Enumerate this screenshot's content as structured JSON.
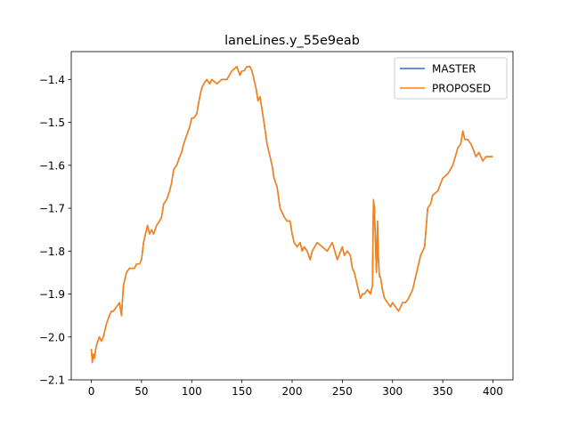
{
  "chart_data": {
    "type": "line",
    "title": "laneLines.y_55e9eab",
    "xlabel": "",
    "ylabel": "",
    "xlim": [
      -20,
      420
    ],
    "ylim": [
      -2.1,
      -1.335
    ],
    "xticks": [
      0,
      50,
      100,
      150,
      200,
      250,
      300,
      350,
      400
    ],
    "yticks": [
      -2.1,
      -2.0,
      -1.9,
      -1.8,
      -1.7,
      -1.6,
      -1.5,
      -1.4
    ],
    "xtick_labels": [
      "0",
      "50",
      "100",
      "150",
      "200",
      "250",
      "300",
      "350",
      "400"
    ],
    "ytick_labels": [
      "−2.1",
      "−2.0",
      "−1.9",
      "−1.8",
      "−1.7",
      "−1.6",
      "−1.5",
      "−1.4"
    ],
    "grid": false,
    "legend_position": "top-right",
    "series": [
      {
        "name": "MASTER",
        "color": "#1f77b4",
        "x": [
          0,
          1,
          2,
          3,
          5,
          8,
          10,
          12,
          15,
          18,
          20,
          22,
          25,
          28,
          30,
          32,
          35,
          38,
          40,
          43,
          45,
          48,
          50,
          52,
          54,
          56,
          58,
          60,
          62,
          65,
          68,
          70,
          72,
          75,
          78,
          80,
          82,
          85,
          88,
          90,
          92,
          95,
          98,
          100,
          102,
          105,
          108,
          110,
          112,
          115,
          118,
          120,
          125,
          130,
          135,
          140,
          145,
          148,
          150,
          152,
          155,
          158,
          160,
          162,
          164,
          166,
          168,
          170,
          172,
          175,
          178,
          180,
          182,
          185,
          188,
          190,
          192,
          195,
          198,
          200,
          202,
          205,
          208,
          210,
          212,
          215,
          218,
          220,
          225,
          230,
          235,
          240,
          245,
          250,
          252,
          255,
          258,
          260,
          262,
          265,
          268,
          270,
          272,
          275,
          278,
          280,
          281,
          282,
          283,
          284,
          285,
          286,
          287,
          288,
          290,
          292,
          295,
          298,
          300,
          303,
          306,
          310,
          313,
          316,
          320,
          322,
          325,
          328,
          330,
          332,
          335,
          338,
          340,
          345,
          350,
          355,
          360,
          365,
          368,
          370,
          372,
          375,
          378,
          380,
          383,
          386,
          390,
          393,
          396,
          399
        ],
        "y": [
          -2.03,
          -2.06,
          -2.04,
          -2.05,
          -2.02,
          -2.0,
          -2.01,
          -2.0,
          -1.97,
          -1.95,
          -1.94,
          -1.94,
          -1.93,
          -1.92,
          -1.95,
          -1.88,
          -1.85,
          -1.84,
          -1.84,
          -1.84,
          -1.83,
          -1.83,
          -1.82,
          -1.78,
          -1.76,
          -1.74,
          -1.76,
          -1.75,
          -1.76,
          -1.74,
          -1.73,
          -1.72,
          -1.69,
          -1.68,
          -1.66,
          -1.64,
          -1.61,
          -1.6,
          -1.58,
          -1.57,
          -1.55,
          -1.53,
          -1.51,
          -1.49,
          -1.49,
          -1.48,
          -1.44,
          -1.42,
          -1.41,
          -1.4,
          -1.41,
          -1.4,
          -1.41,
          -1.4,
          -1.4,
          -1.38,
          -1.37,
          -1.39,
          -1.38,
          -1.38,
          -1.37,
          -1.37,
          -1.38,
          -1.4,
          -1.42,
          -1.45,
          -1.44,
          -1.47,
          -1.5,
          -1.55,
          -1.58,
          -1.6,
          -1.63,
          -1.65,
          -1.7,
          -1.71,
          -1.72,
          -1.73,
          -1.73,
          -1.76,
          -1.78,
          -1.79,
          -1.78,
          -1.8,
          -1.79,
          -1.8,
          -1.82,
          -1.8,
          -1.78,
          -1.79,
          -1.8,
          -1.78,
          -1.82,
          -1.79,
          -1.81,
          -1.8,
          -1.81,
          -1.84,
          -1.85,
          -1.88,
          -1.91,
          -1.9,
          -1.9,
          -1.89,
          -1.9,
          -1.88,
          -1.68,
          -1.7,
          -1.78,
          -1.85,
          -1.73,
          -1.82,
          -1.86,
          -1.86,
          -1.89,
          -1.91,
          -1.92,
          -1.93,
          -1.92,
          -1.93,
          -1.94,
          -1.92,
          -1.92,
          -1.91,
          -1.89,
          -1.87,
          -1.84,
          -1.81,
          -1.8,
          -1.79,
          -1.7,
          -1.69,
          -1.67,
          -1.66,
          -1.63,
          -1.62,
          -1.6,
          -1.56,
          -1.55,
          -1.52,
          -1.54,
          -1.54,
          -1.55,
          -1.56,
          -1.58,
          -1.57,
          -1.59,
          -1.58,
          -1.58,
          -1.58
        ]
      },
      {
        "name": "PROPOSED",
        "color": "#ff7f0e",
        "x": [
          0,
          1,
          2,
          3,
          5,
          8,
          10,
          12,
          15,
          18,
          20,
          22,
          25,
          28,
          30,
          32,
          35,
          38,
          40,
          43,
          45,
          48,
          50,
          52,
          54,
          56,
          58,
          60,
          62,
          65,
          68,
          70,
          72,
          75,
          78,
          80,
          82,
          85,
          88,
          90,
          92,
          95,
          98,
          100,
          102,
          105,
          108,
          110,
          112,
          115,
          118,
          120,
          125,
          130,
          135,
          140,
          145,
          148,
          150,
          152,
          155,
          158,
          160,
          162,
          164,
          166,
          168,
          170,
          172,
          175,
          178,
          180,
          182,
          185,
          188,
          190,
          192,
          195,
          198,
          200,
          202,
          205,
          208,
          210,
          212,
          215,
          218,
          220,
          225,
          230,
          235,
          240,
          245,
          250,
          252,
          255,
          258,
          260,
          262,
          265,
          268,
          270,
          272,
          275,
          278,
          280,
          281,
          282,
          283,
          284,
          285,
          286,
          287,
          288,
          290,
          292,
          295,
          298,
          300,
          303,
          306,
          310,
          313,
          316,
          320,
          322,
          325,
          328,
          330,
          332,
          335,
          338,
          340,
          345,
          350,
          355,
          360,
          365,
          368,
          370,
          372,
          375,
          378,
          380,
          383,
          386,
          390,
          393,
          396,
          399
        ],
        "y": [
          -2.03,
          -2.06,
          -2.04,
          -2.05,
          -2.02,
          -2.0,
          -2.01,
          -2.0,
          -1.97,
          -1.95,
          -1.94,
          -1.94,
          -1.93,
          -1.92,
          -1.95,
          -1.88,
          -1.85,
          -1.84,
          -1.84,
          -1.84,
          -1.83,
          -1.83,
          -1.82,
          -1.78,
          -1.76,
          -1.74,
          -1.76,
          -1.75,
          -1.76,
          -1.74,
          -1.73,
          -1.72,
          -1.69,
          -1.68,
          -1.66,
          -1.64,
          -1.61,
          -1.6,
          -1.58,
          -1.57,
          -1.55,
          -1.53,
          -1.51,
          -1.49,
          -1.49,
          -1.48,
          -1.44,
          -1.42,
          -1.41,
          -1.4,
          -1.41,
          -1.4,
          -1.41,
          -1.4,
          -1.4,
          -1.38,
          -1.37,
          -1.39,
          -1.38,
          -1.38,
          -1.37,
          -1.37,
          -1.38,
          -1.4,
          -1.42,
          -1.45,
          -1.44,
          -1.47,
          -1.5,
          -1.55,
          -1.58,
          -1.6,
          -1.63,
          -1.65,
          -1.7,
          -1.71,
          -1.72,
          -1.73,
          -1.73,
          -1.76,
          -1.78,
          -1.79,
          -1.78,
          -1.8,
          -1.79,
          -1.8,
          -1.82,
          -1.8,
          -1.78,
          -1.79,
          -1.8,
          -1.78,
          -1.82,
          -1.79,
          -1.81,
          -1.8,
          -1.81,
          -1.84,
          -1.85,
          -1.88,
          -1.91,
          -1.9,
          -1.9,
          -1.89,
          -1.9,
          -1.88,
          -1.68,
          -1.7,
          -1.78,
          -1.85,
          -1.73,
          -1.82,
          -1.86,
          -1.86,
          -1.89,
          -1.91,
          -1.92,
          -1.93,
          -1.92,
          -1.93,
          -1.94,
          -1.92,
          -1.92,
          -1.91,
          -1.89,
          -1.87,
          -1.84,
          -1.81,
          -1.8,
          -1.79,
          -1.7,
          -1.69,
          -1.67,
          -1.66,
          -1.63,
          -1.62,
          -1.6,
          -1.56,
          -1.55,
          -1.52,
          -1.54,
          -1.54,
          -1.55,
          -1.56,
          -1.58,
          -1.57,
          -1.59,
          -1.58,
          -1.58,
          -1.58
        ]
      }
    ]
  }
}
